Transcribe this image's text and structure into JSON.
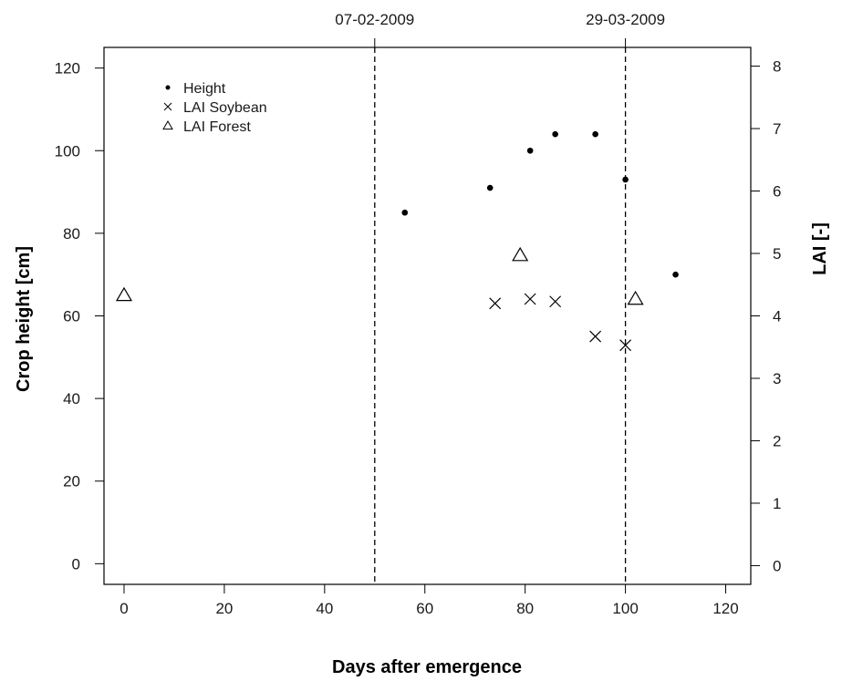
{
  "chart_data": {
    "type": "scatter",
    "xlabel": "Days after emergence",
    "ylabel": "Crop height [cm]",
    "y2label": "LAI [-]",
    "xlim": [
      -4,
      125
    ],
    "ylim": [
      -5,
      125
    ],
    "y2lim": [
      -0.3,
      8.3
    ],
    "x_ticks": [
      0,
      20,
      40,
      60,
      80,
      100,
      120
    ],
    "y_ticks": [
      0,
      20,
      40,
      60,
      80,
      100,
      120
    ],
    "y2_ticks": [
      0,
      1,
      2,
      3,
      4,
      5,
      6,
      7,
      8
    ],
    "grid": false,
    "legend_position": "top-left",
    "reference_lines": [
      {
        "x": 50,
        "label": "07-02-2009"
      },
      {
        "x": 100,
        "label": "29-03-2009"
      }
    ],
    "series": [
      {
        "name": "Height",
        "marker": "dot",
        "axis": "left",
        "points": [
          {
            "x": 56,
            "y": 85
          },
          {
            "x": 73,
            "y": 91
          },
          {
            "x": 81,
            "y": 100
          },
          {
            "x": 86,
            "y": 104
          },
          {
            "x": 94,
            "y": 104
          },
          {
            "x": 100,
            "y": 93
          },
          {
            "x": 110,
            "y": 70
          }
        ]
      },
      {
        "name": "LAI Soybean",
        "marker": "cross",
        "axis": "right",
        "points": [
          {
            "x": 74,
            "y": 4.2
          },
          {
            "x": 81,
            "y": 4.27
          },
          {
            "x": 86,
            "y": 4.23
          },
          {
            "x": 94,
            "y": 3.67
          },
          {
            "x": 100,
            "y": 3.53
          }
        ]
      },
      {
        "name": "LAI Forest",
        "marker": "triangle",
        "axis": "right",
        "points": [
          {
            "x": 0,
            "y": 4.33
          },
          {
            "x": 79,
            "y": 4.97
          },
          {
            "x": 102,
            "y": 4.27
          }
        ]
      }
    ]
  }
}
